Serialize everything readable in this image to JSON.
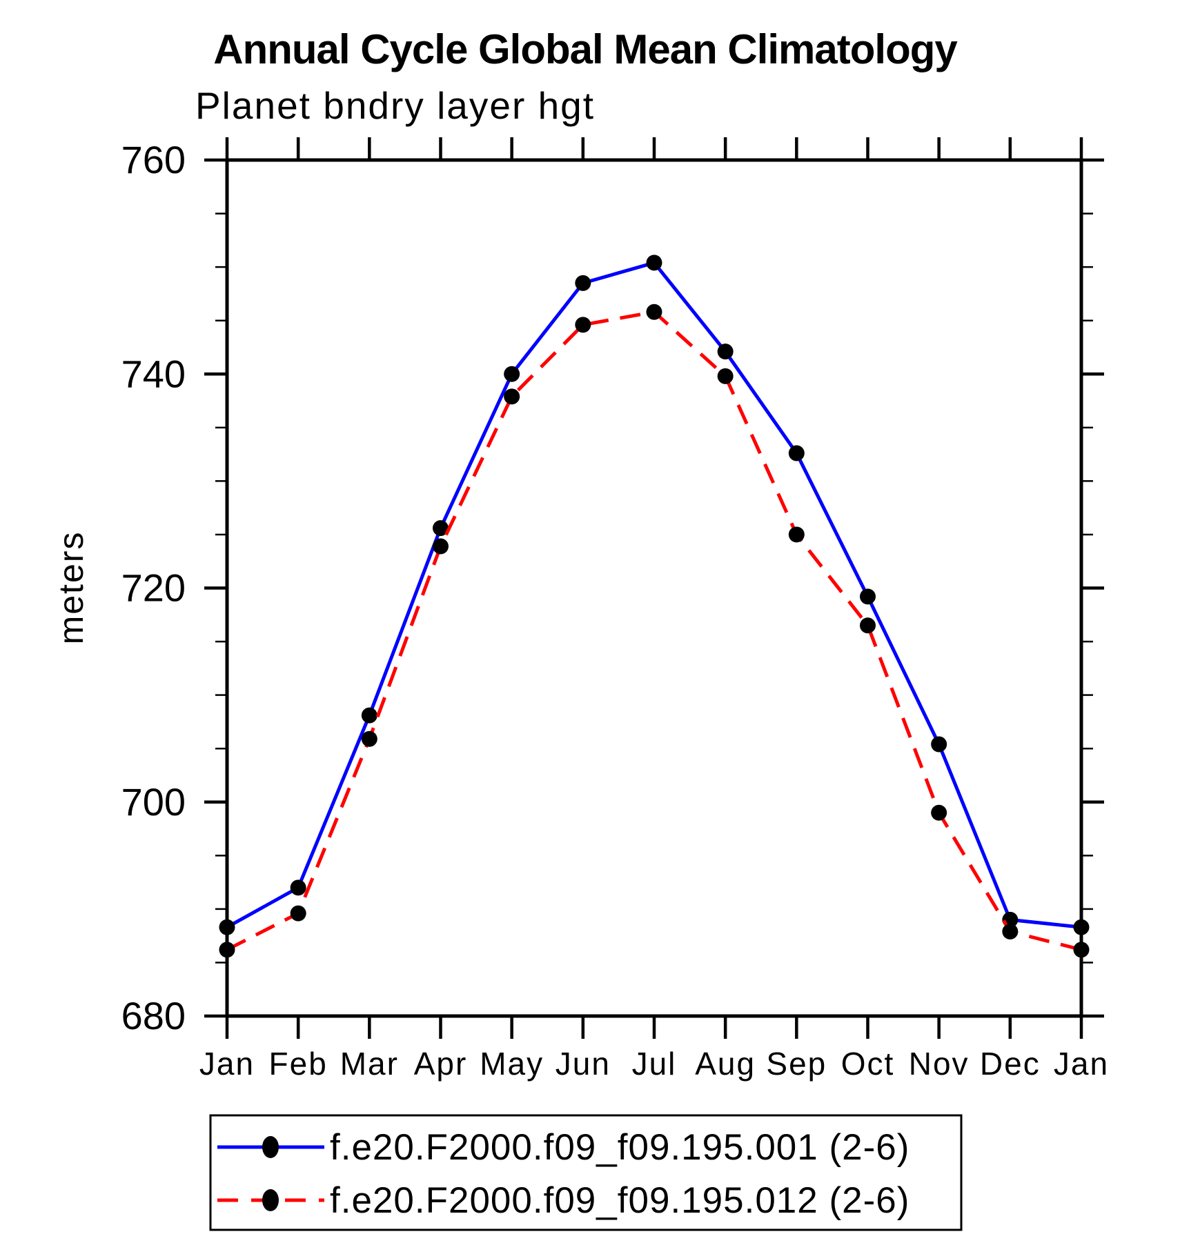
{
  "chart_data": {
    "type": "line",
    "title": "Annual Cycle Global Mean Climatology",
    "subtitle": "Planet bndry layer hgt",
    "xlabel": "",
    "ylabel": "meters",
    "ylim": [
      680,
      760
    ],
    "ytick_major": [
      680,
      700,
      720,
      740,
      760
    ],
    "ytick_minor_step": 5,
    "grid": false,
    "legend_position": "bottom",
    "categories": [
      "Jan",
      "Feb",
      "Mar",
      "Apr",
      "May",
      "Jun",
      "Jul",
      "Aug",
      "Sep",
      "Oct",
      "Nov",
      "Dec",
      "Jan"
    ],
    "series": [
      {
        "name": "f.e20.F2000.f09_f09.195.001 (2-6)",
        "color": "#0000ff",
        "line_style": "solid",
        "marker": "filled-circle",
        "marker_color": "#000000",
        "values": [
          688.3,
          692.0,
          708.1,
          725.6,
          740.0,
          748.5,
          750.4,
          742.1,
          732.6,
          719.2,
          705.4,
          689.0,
          688.3
        ]
      },
      {
        "name": "f.e20.F2000.f09_f09.195.012 (2-6)",
        "color": "#ff0000",
        "line_style": "dashed",
        "marker": "filled-circle",
        "marker_color": "#000000",
        "values": [
          686.2,
          689.6,
          705.9,
          723.9,
          737.9,
          744.6,
          745.8,
          739.8,
          725.0,
          716.5,
          699.0,
          687.9,
          686.2
        ]
      }
    ],
    "axis_color": "#000000"
  }
}
